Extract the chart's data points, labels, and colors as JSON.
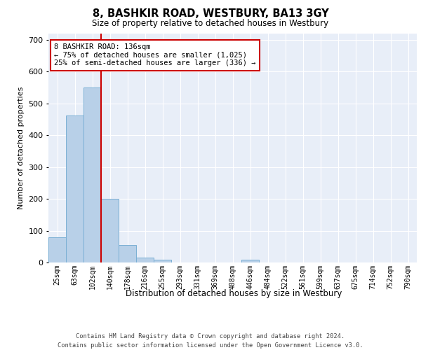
{
  "title": "8, BASHKIR ROAD, WESTBURY, BA13 3GY",
  "subtitle": "Size of property relative to detached houses in Westbury",
  "xlabel": "Distribution of detached houses by size in Westbury",
  "ylabel": "Number of detached properties",
  "categories": [
    "25sqm",
    "63sqm",
    "102sqm",
    "140sqm",
    "178sqm",
    "216sqm",
    "255sqm",
    "293sqm",
    "331sqm",
    "369sqm",
    "408sqm",
    "446sqm",
    "484sqm",
    "522sqm",
    "561sqm",
    "599sqm",
    "637sqm",
    "675sqm",
    "714sqm",
    "752sqm",
    "790sqm"
  ],
  "values": [
    80,
    462,
    549,
    201,
    55,
    15,
    8,
    0,
    0,
    0,
    0,
    8,
    0,
    0,
    0,
    0,
    0,
    0,
    0,
    0,
    0
  ],
  "bar_color": "#b8d0e8",
  "bar_edge_color": "#7aafd4",
  "vline_x": 3,
  "vline_color": "#cc0000",
  "annotation_line1": "8 BASHKIR ROAD: 136sqm",
  "annotation_line2": "← 75% of detached houses are smaller (1,025)",
  "annotation_line3": "25% of semi-detached houses are larger (336) →",
  "annotation_box_color": "#cc0000",
  "annotation_box_facecolor": "white",
  "ylim": [
    0,
    720
  ],
  "yticks": [
    0,
    100,
    200,
    300,
    400,
    500,
    600,
    700
  ],
  "background_color": "#e8eef8",
  "grid_color": "white",
  "footer_line1": "Contains HM Land Registry data © Crown copyright and database right 2024.",
  "footer_line2": "Contains public sector information licensed under the Open Government Licence v3.0."
}
